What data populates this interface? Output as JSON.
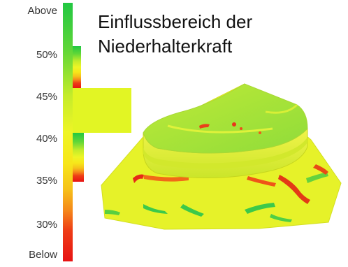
{
  "title": {
    "line1": "Einflussbereich der",
    "line2": "Niederhalterkraft"
  },
  "legend": {
    "labels": [
      "Above",
      "50%",
      "45%",
      "40%",
      "35%",
      "30%",
      "Below"
    ],
    "colors": {
      "above": "#22c742",
      "mid": "#e4f52c",
      "yellow": "#f7e61a",
      "orange": "#f59a1a",
      "below": "#e71313"
    }
  },
  "histogram": {
    "unit": "percent",
    "bands": [
      {
        "range": "Above-50%",
        "share": 0.05
      },
      {
        "range": "50%-45%",
        "share": 0.05
      },
      {
        "range": "45%-40%",
        "share": 0.55
      },
      {
        "range": "40%-35%",
        "share": 0.15
      },
      {
        "range": "35%-30%",
        "share": 0.05
      },
      {
        "range": "30%-Below",
        "share": 0.03
      }
    ]
  },
  "part_icon": "sheet-metal-part-contour-plot"
}
